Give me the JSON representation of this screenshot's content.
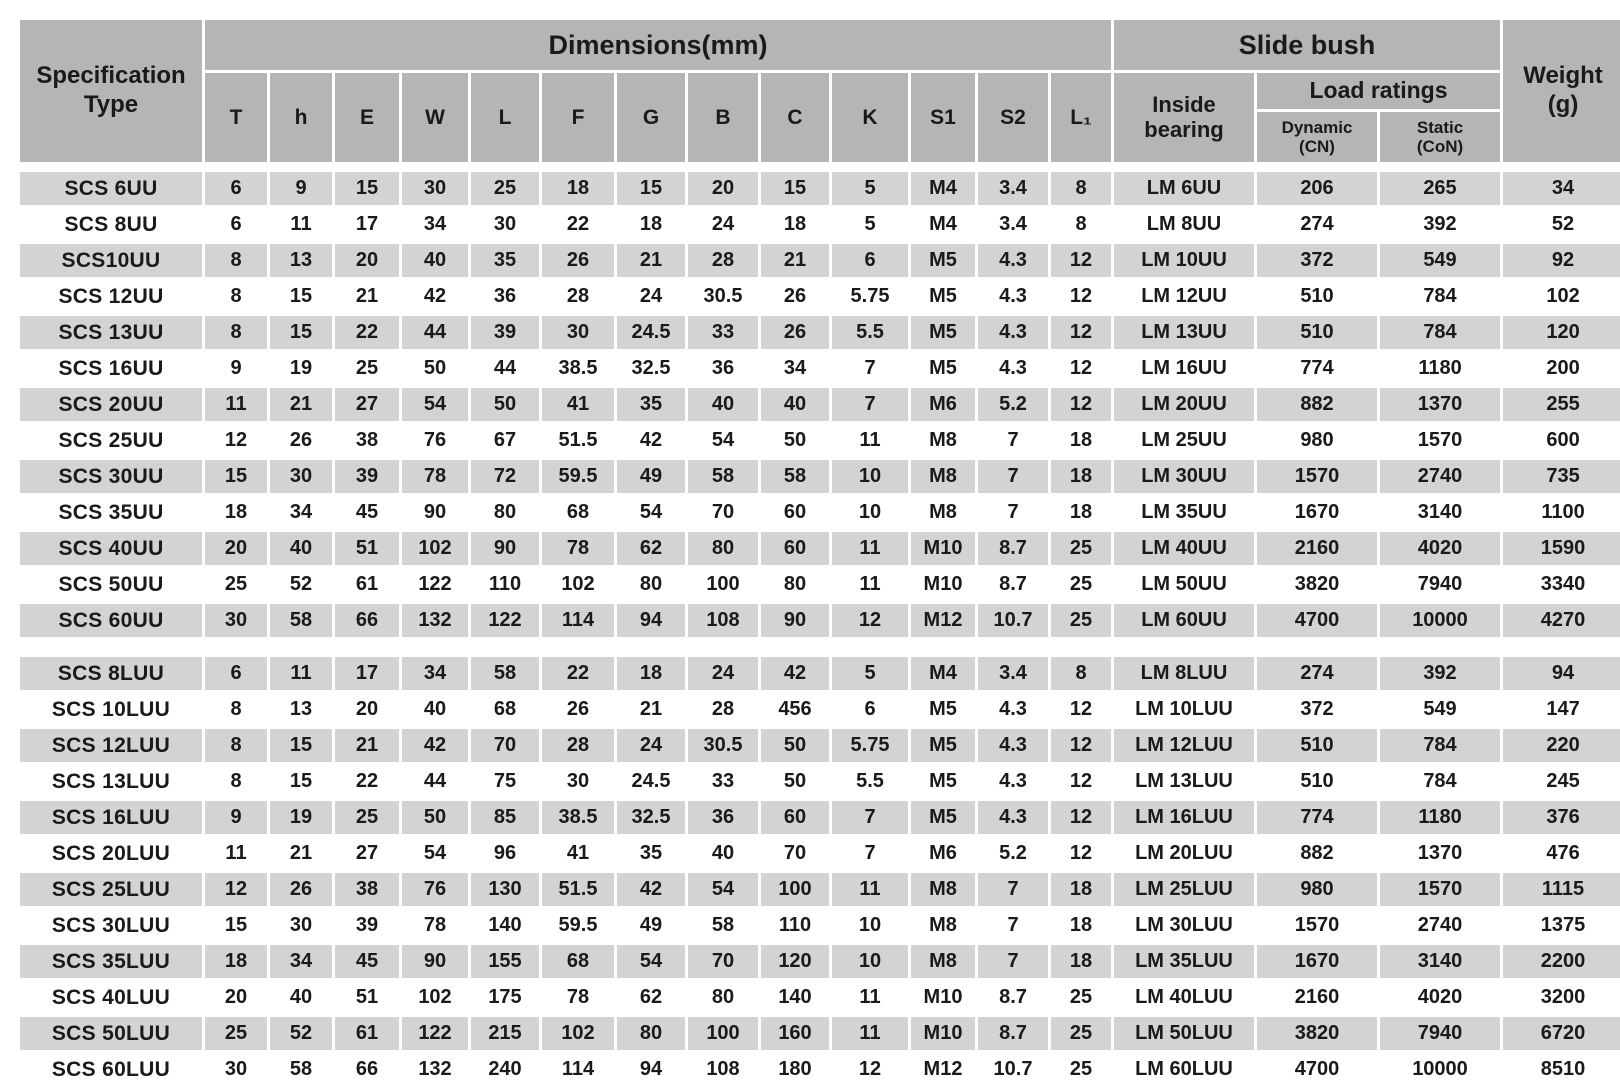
{
  "colors": {
    "page_bg": "#ffffff",
    "header_gray": "#b5b5b5",
    "stripe_gray": "#d3d3d3",
    "text_color": "#1a1a1a"
  },
  "header": {
    "spec_type": "Specification\nType",
    "dimensions": "Dimensions(mm)",
    "slide_bush": "Slide bush",
    "weight": "Weight\n(g)",
    "inside_bearing": "Inside\nbearing",
    "load_ratings": "Load ratings",
    "dynamic": "Dynamic\n(CN)",
    "static": "Static\n(CoN)",
    "dim_columns": [
      "T",
      "h",
      "E",
      "W",
      "L",
      "F",
      "G",
      "B",
      "C",
      "K",
      "S1",
      "S2",
      "L₁"
    ]
  },
  "table": {
    "column_keys": [
      "spec",
      "T",
      "h",
      "E",
      "W",
      "L",
      "F",
      "G",
      "B",
      "C",
      "K",
      "S1",
      "S2",
      "L1",
      "inside-bearing",
      "dynamic-load",
      "static-load",
      "weight"
    ],
    "sections": [
      {
        "name": "UU",
        "rows": [
          [
            "SCS 6UU",
            "6",
            "9",
            "15",
            "30",
            "25",
            "18",
            "15",
            "20",
            "15",
            "5",
            "M4",
            "3.4",
            "8",
            "LM 6UU",
            "206",
            "265",
            "34"
          ],
          [
            "SCS 8UU",
            "6",
            "11",
            "17",
            "34",
            "30",
            "22",
            "18",
            "24",
            "18",
            "5",
            "M4",
            "3.4",
            "8",
            "LM 8UU",
            "274",
            "392",
            "52"
          ],
          [
            "SCS10UU",
            "8",
            "13",
            "20",
            "40",
            "35",
            "26",
            "21",
            "28",
            "21",
            "6",
            "M5",
            "4.3",
            "12",
            "LM 10UU",
            "372",
            "549",
            "92"
          ],
          [
            "SCS 12UU",
            "8",
            "15",
            "21",
            "42",
            "36",
            "28",
            "24",
            "30.5",
            "26",
            "5.75",
            "M5",
            "4.3",
            "12",
            "LM 12UU",
            "510",
            "784",
            "102"
          ],
          [
            "SCS 13UU",
            "8",
            "15",
            "22",
            "44",
            "39",
            "30",
            "24.5",
            "33",
            "26",
            "5.5",
            "M5",
            "4.3",
            "12",
            "LM 13UU",
            "510",
            "784",
            "120"
          ],
          [
            "SCS 16UU",
            "9",
            "19",
            "25",
            "50",
            "44",
            "38.5",
            "32.5",
            "36",
            "34",
            "7",
            "M5",
            "4.3",
            "12",
            "LM 16UU",
            "774",
            "1180",
            "200"
          ],
          [
            "SCS 20UU",
            "11",
            "21",
            "27",
            "54",
            "50",
            "41",
            "35",
            "40",
            "40",
            "7",
            "M6",
            "5.2",
            "12",
            "LM 20UU",
            "882",
            "1370",
            "255"
          ],
          [
            "SCS 25UU",
            "12",
            "26",
            "38",
            "76",
            "67",
            "51.5",
            "42",
            "54",
            "50",
            "11",
            "M8",
            "7",
            "18",
            "LM 25UU",
            "980",
            "1570",
            "600"
          ],
          [
            "SCS 30UU",
            "15",
            "30",
            "39",
            "78",
            "72",
            "59.5",
            "49",
            "58",
            "58",
            "10",
            "M8",
            "7",
            "18",
            "LM 30UU",
            "1570",
            "2740",
            "735"
          ],
          [
            "SCS 35UU",
            "18",
            "34",
            "45",
            "90",
            "80",
            "68",
            "54",
            "70",
            "60",
            "10",
            "M8",
            "7",
            "18",
            "LM 35UU",
            "1670",
            "3140",
            "1100"
          ],
          [
            "SCS 40UU",
            "20",
            "40",
            "51",
            "102",
            "90",
            "78",
            "62",
            "80",
            "60",
            "11",
            "M10",
            "8.7",
            "25",
            "LM 40UU",
            "2160",
            "4020",
            "1590"
          ],
          [
            "SCS 50UU",
            "25",
            "52",
            "61",
            "122",
            "110",
            "102",
            "80",
            "100",
            "80",
            "11",
            "M10",
            "8.7",
            "25",
            "LM 50UU",
            "3820",
            "7940",
            "3340"
          ],
          [
            "SCS 60UU",
            "30",
            "58",
            "66",
            "132",
            "122",
            "114",
            "94",
            "108",
            "90",
            "12",
            "M12",
            "10.7",
            "25",
            "LM 60UU",
            "4700",
            "10000",
            "4270"
          ]
        ]
      },
      {
        "name": "LUU",
        "rows": [
          [
            "SCS 8LUU",
            "6",
            "11",
            "17",
            "34",
            "58",
            "22",
            "18",
            "24",
            "42",
            "5",
            "M4",
            "3.4",
            "8",
            "LM 8LUU",
            "274",
            "392",
            "94"
          ],
          [
            "SCS 10LUU",
            "8",
            "13",
            "20",
            "40",
            "68",
            "26",
            "21",
            "28",
            "456",
            "6",
            "M5",
            "4.3",
            "12",
            "LM 10LUU",
            "372",
            "549",
            "147"
          ],
          [
            "SCS 12LUU",
            "8",
            "15",
            "21",
            "42",
            "70",
            "28",
            "24",
            "30.5",
            "50",
            "5.75",
            "M5",
            "4.3",
            "12",
            "LM 12LUU",
            "510",
            "784",
            "220"
          ],
          [
            "SCS 13LUU",
            "8",
            "15",
            "22",
            "44",
            "75",
            "30",
            "24.5",
            "33",
            "50",
            "5.5",
            "M5",
            "4.3",
            "12",
            "LM 13LUU",
            "510",
            "784",
            "245"
          ],
          [
            "SCS 16LUU",
            "9",
            "19",
            "25",
            "50",
            "85",
            "38.5",
            "32.5",
            "36",
            "60",
            "7",
            "M5",
            "4.3",
            "12",
            "LM 16LUU",
            "774",
            "1180",
            "376"
          ],
          [
            "SCS 20LUU",
            "11",
            "21",
            "27",
            "54",
            "96",
            "41",
            "35",
            "40",
            "70",
            "7",
            "M6",
            "5.2",
            "12",
            "LM 20LUU",
            "882",
            "1370",
            "476"
          ],
          [
            "SCS 25LUU",
            "12",
            "26",
            "38",
            "76",
            "130",
            "51.5",
            "42",
            "54",
            "100",
            "11",
            "M8",
            "7",
            "18",
            "LM 25LUU",
            "980",
            "1570",
            "1115"
          ],
          [
            "SCS 30LUU",
            "15",
            "30",
            "39",
            "78",
            "140",
            "59.5",
            "49",
            "58",
            "110",
            "10",
            "M8",
            "7",
            "18",
            "LM 30LUU",
            "1570",
            "2740",
            "1375"
          ],
          [
            "SCS 35LUU",
            "18",
            "34",
            "45",
            "90",
            "155",
            "68",
            "54",
            "70",
            "120",
            "10",
            "M8",
            "7",
            "18",
            "LM 35LUU",
            "1670",
            "3140",
            "2200"
          ],
          [
            "SCS 40LUU",
            "20",
            "40",
            "51",
            "102",
            "175",
            "78",
            "62",
            "80",
            "140",
            "11",
            "M10",
            "8.7",
            "25",
            "LM 40LUU",
            "2160",
            "4020",
            "3200"
          ],
          [
            "SCS 50LUU",
            "25",
            "52",
            "61",
            "122",
            "215",
            "102",
            "80",
            "100",
            "160",
            "11",
            "M10",
            "8.7",
            "25",
            "LM 50LUU",
            "3820",
            "7940",
            "6720"
          ],
          [
            "SCS 60LUU",
            "30",
            "58",
            "66",
            "132",
            "240",
            "114",
            "94",
            "108",
            "180",
            "12",
            "M12",
            "10.7",
            "25",
            "LM 60LUU",
            "4700",
            "10000",
            "8510"
          ]
        ]
      }
    ]
  }
}
